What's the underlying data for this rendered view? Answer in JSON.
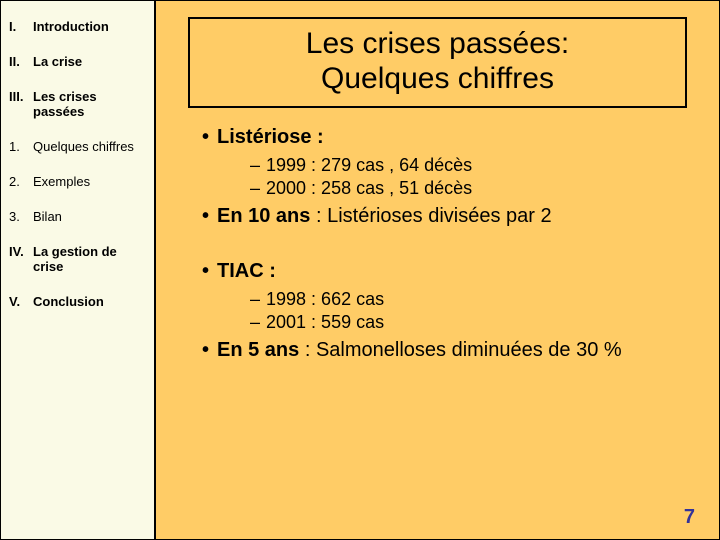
{
  "sidebar": {
    "items": [
      {
        "num": "I.",
        "label": "Introduction",
        "sub": false
      },
      {
        "num": "II.",
        "label": "La crise",
        "sub": false
      },
      {
        "num": "III.",
        "label": "Les crises passées",
        "sub": false
      },
      {
        "num": "1.",
        "label": "Quelques chiffres",
        "sub": true
      },
      {
        "num": "2.",
        "label": "Exemples",
        "sub": true
      },
      {
        "num": "3.",
        "label": "Bilan",
        "sub": true
      },
      {
        "num": "IV.",
        "label": "La gestion de crise",
        "sub": false
      },
      {
        "num": "V.",
        "label": "Conclusion",
        "sub": false
      }
    ]
  },
  "title": {
    "line1": "Les crises passées:",
    "line2": "Quelques chiffres"
  },
  "content": {
    "b1": "Listériose :",
    "b1_s1": "1999 : 279 cas , 64 décès",
    "b1_s2": "2000 : 258 cas , 51 décès",
    "b2_pre": "En 10 ans",
    "b2_post": " : Listérioses divisées par 2",
    "b3": "TIAC :",
    "b3_s1": "1998 : 662 cas",
    "b3_s2": "2001 : 559 cas",
    "b4_pre": "En 5 ans",
    "b4_post": " : Salmonelloses diminuées de 30 %"
  },
  "page_number": "7",
  "colors": {
    "main_bg": "#ffcc66",
    "sidebar_bg": "#fafae6",
    "pagenum": "#333399"
  }
}
